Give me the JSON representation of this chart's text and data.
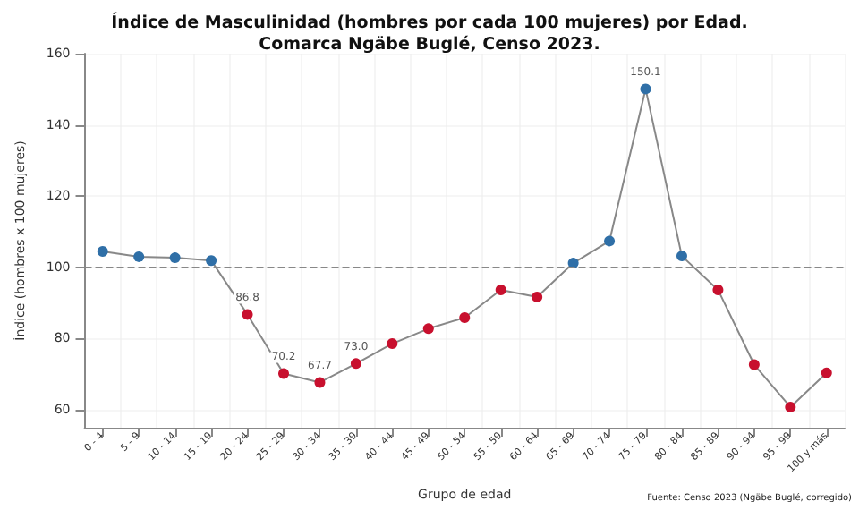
{
  "chart_data": {
    "type": "line",
    "title": "Índice de Masculinidad (hombres por cada 100 mujeres) por Edad.\nComarca Ngäbe Buglé, Censo 2023.",
    "xlabel": "Grupo de edad",
    "ylabel": "Índice (hombres x 100 mujeres)",
    "categories": [
      "0 - 4",
      "5 - 9",
      "10 - 14",
      "15 - 19",
      "20 - 24",
      "25 - 29",
      "30 - 34",
      "35 - 39",
      "40 - 44",
      "45 - 49",
      "50 - 54",
      "55 - 59",
      "60 - 64",
      "65 - 69",
      "70 - 74",
      "75 - 79",
      "80 - 84",
      "85 - 89",
      "90 - 94",
      "95 - 99",
      "100 y más"
    ],
    "series": [
      {
        "color": "#888888",
        "values": [
          104.5,
          103.0,
          102.7,
          101.9,
          86.8,
          70.2,
          67.7,
          73.0,
          78.6,
          82.8,
          85.9,
          93.7,
          91.7,
          101.2,
          107.4,
          150.1,
          103.2,
          93.7,
          72.7,
          60.8,
          70.4
        ],
        "colors": [
          "#2f6fa7",
          "#2f6fa7",
          "#2f6fa7",
          "#2f6fa7",
          "#c8102e",
          "#c8102e",
          "#c8102e",
          "#c8102e",
          "#c8102e",
          "#c8102e",
          "#c8102e",
          "#c8102e",
          "#c8102e",
          "#2f6fa7",
          "#2f6fa7",
          "#2f6fa7",
          "#2f6fa7",
          "#c8102e",
          "#c8102e",
          "#c8102e",
          "#c8102e"
        ],
        "value_labels": [
          null,
          null,
          null,
          null,
          "86.8",
          "70.2",
          "67.7",
          "73.0",
          null,
          null,
          null,
          null,
          null,
          null,
          null,
          "150.1",
          null,
          null,
          null,
          null,
          null
        ]
      }
    ],
    "ylim": [
      55,
      160
    ],
    "yticks": [
      60,
      80,
      100,
      120,
      140,
      160
    ],
    "grid": true,
    "marker": "circle",
    "line_style": "solid",
    "ref_lines": [
      {
        "axis": "y",
        "value": 100,
        "color": "#888888",
        "line_style": "dashed"
      }
    ],
    "annotations": [
      "Fuente: Censo 2023 (Ngäbe Buglé, corregido)"
    ]
  }
}
